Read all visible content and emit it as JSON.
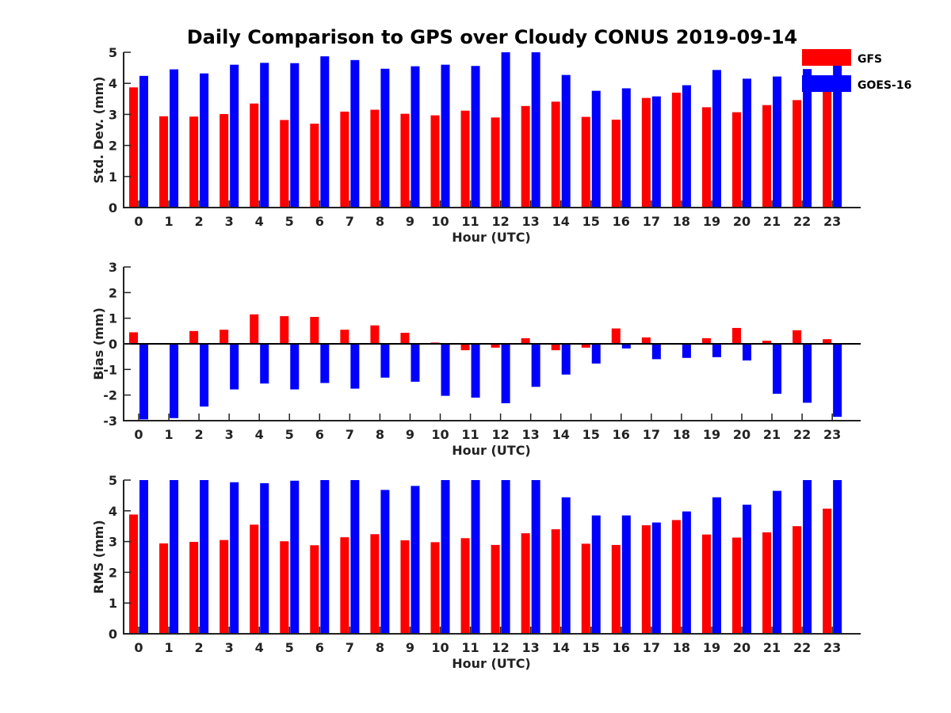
{
  "title": "Daily Comparison to GPS over Cloudy CONUS 2019-09-14",
  "legend": [
    {
      "name": "GFS",
      "color": "#ff0000"
    },
    {
      "name": "GOES-16",
      "color": "#0000ff"
    }
  ],
  "chart_data": [
    {
      "type": "bar",
      "xlabel": "Hour (UTC)",
      "ylabel": "Std. Dev. (mm)",
      "ylim": [
        0,
        5
      ],
      "yticks": [
        0,
        1,
        2,
        3,
        4,
        5
      ],
      "categories": [
        "0",
        "1",
        "2",
        "3",
        "4",
        "5",
        "6",
        "7",
        "8",
        "9",
        "10",
        "11",
        "12",
        "13",
        "14",
        "15",
        "16",
        "17",
        "18",
        "19",
        "20",
        "21",
        "22",
        "23"
      ],
      "series": [
        {
          "name": "GFS",
          "color": "#ff0000",
          "values": [
            3.87,
            2.94,
            2.93,
            3.01,
            3.35,
            2.82,
            2.7,
            3.09,
            3.15,
            3.02,
            2.97,
            3.12,
            2.9,
            3.27,
            3.41,
            2.92,
            2.83,
            3.53,
            3.7,
            3.23,
            3.07,
            3.3,
            3.46,
            4.08
          ]
        },
        {
          "name": "GOES-16",
          "color": "#0000ff",
          "values": [
            4.24,
            4.45,
            4.32,
            4.6,
            4.66,
            4.65,
            4.87,
            4.75,
            4.47,
            4.55,
            4.6,
            4.56,
            5.0,
            5.0,
            4.27,
            3.76,
            3.84,
            3.58,
            3.94,
            4.43,
            4.15,
            4.22,
            4.46,
            4.6
          ]
        }
      ]
    },
    {
      "type": "bar",
      "xlabel": "Hour (UTC)",
      "ylabel": "Bias (mm)",
      "ylim": [
        -3,
        3
      ],
      "yticks": [
        -3,
        -2,
        -1,
        0,
        1,
        2,
        3
      ],
      "categories": [
        "0",
        "1",
        "2",
        "3",
        "4",
        "5",
        "6",
        "7",
        "8",
        "9",
        "10",
        "11",
        "12",
        "13",
        "14",
        "15",
        "16",
        "17",
        "18",
        "19",
        "20",
        "21",
        "22",
        "23"
      ],
      "series": [
        {
          "name": "GFS",
          "color": "#ff0000",
          "values": [
            0.45,
            0.0,
            0.5,
            0.55,
            1.15,
            1.08,
            1.05,
            0.55,
            0.72,
            0.43,
            0.05,
            -0.25,
            -0.15,
            0.22,
            -0.25,
            -0.15,
            0.6,
            0.25,
            0.0,
            0.22,
            0.62,
            0.12,
            0.53,
            0.18
          ]
        },
        {
          "name": "GOES-16",
          "color": "#0000ff",
          "values": [
            -2.95,
            -2.9,
            -2.45,
            -1.78,
            -1.55,
            -1.78,
            -1.53,
            -1.75,
            -1.32,
            -1.48,
            -2.03,
            -2.1,
            -2.32,
            -1.68,
            -1.2,
            -0.77,
            -0.18,
            -0.6,
            -0.55,
            -0.52,
            -0.65,
            -1.95,
            -2.3,
            -2.85
          ]
        }
      ]
    },
    {
      "type": "bar",
      "xlabel": "Hour (UTC)",
      "ylabel": "RMS (mm)",
      "ylim": [
        0,
        5
      ],
      "yticks": [
        0,
        1,
        2,
        3,
        4,
        5
      ],
      "categories": [
        "0",
        "1",
        "2",
        "3",
        "4",
        "5",
        "6",
        "7",
        "8",
        "9",
        "10",
        "11",
        "12",
        "13",
        "14",
        "15",
        "16",
        "17",
        "18",
        "19",
        "20",
        "21",
        "22",
        "23"
      ],
      "series": [
        {
          "name": "GFS",
          "color": "#ff0000",
          "values": [
            3.88,
            2.94,
            2.99,
            3.05,
            3.55,
            3.01,
            2.88,
            3.14,
            3.24,
            3.04,
            2.98,
            3.11,
            2.89,
            3.27,
            3.4,
            2.93,
            2.89,
            3.53,
            3.7,
            3.23,
            3.13,
            3.3,
            3.5,
            4.07
          ]
        },
        {
          "name": "GOES-16",
          "color": "#0000ff",
          "values": [
            5.0,
            5.0,
            5.0,
            4.93,
            4.9,
            4.98,
            5.0,
            5.0,
            4.68,
            4.81,
            5.0,
            5.0,
            5.0,
            5.0,
            4.44,
            3.85,
            3.85,
            3.62,
            3.98,
            4.44,
            4.2,
            4.65,
            5.0,
            5.0
          ]
        }
      ]
    }
  ]
}
